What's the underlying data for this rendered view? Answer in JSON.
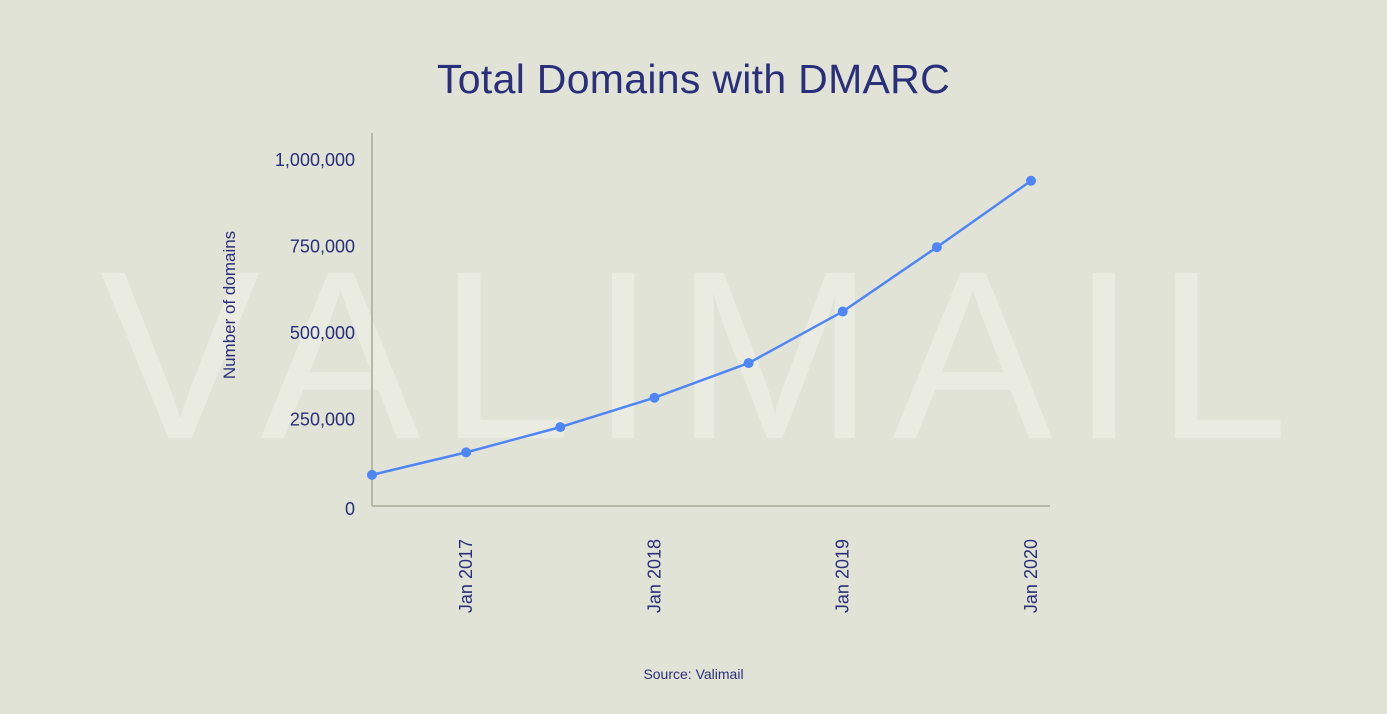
{
  "title": "Total Domains with DMARC",
  "source": "Source: Valimail",
  "watermark": "VALIMAIL",
  "colors": {
    "background": "#e0e3d6",
    "text": "#2a2f7b",
    "line": "#4f86f7",
    "axis": "#b5b8a6"
  },
  "chart_data": {
    "type": "line",
    "ylabel": "Number of domains",
    "xlabel": "",
    "ylim": [
      0,
      1000000
    ],
    "y_ticks": [
      {
        "value": 0,
        "label": "0"
      },
      {
        "value": 250000,
        "label": "250,000"
      },
      {
        "value": 500000,
        "label": "500,000"
      },
      {
        "value": 750000,
        "label": "750,000"
      },
      {
        "value": 1000000,
        "label": "1,000,000"
      }
    ],
    "x_ticks": [
      {
        "x": "2017-01",
        "label": "Jan 2017"
      },
      {
        "x": "2018-01",
        "label": "Jan 2018"
      },
      {
        "x": "2019-01",
        "label": "Jan 2019"
      },
      {
        "x": "2020-01",
        "label": "Jan 2020"
      }
    ],
    "x_range": [
      "2016-07",
      "2020-01"
    ],
    "grid": false,
    "series": [
      {
        "points": [
          {
            "x": "2016-07",
            "y": 90000
          },
          {
            "x": "2017-01",
            "y": 155000
          },
          {
            "x": "2017-07",
            "y": 228000
          },
          {
            "x": "2018-01",
            "y": 313000
          },
          {
            "x": "2018-07",
            "y": 413000
          },
          {
            "x": "2019-01",
            "y": 562000
          },
          {
            "x": "2019-07",
            "y": 748000
          },
          {
            "x": "2020-01",
            "y": 940000
          }
        ]
      }
    ]
  }
}
